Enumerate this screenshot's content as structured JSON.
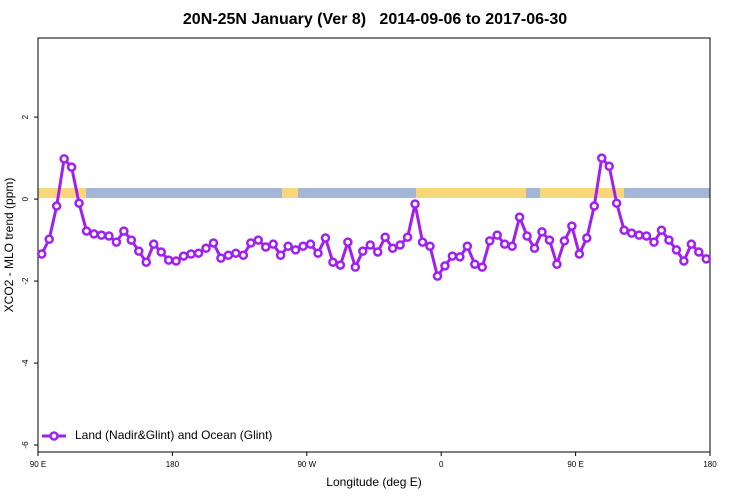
{
  "chart_data": {
    "type": "line",
    "title": "20N-25N January (Ver 8)   2014-09-06 to 2017-06-30",
    "x_label": "Longitude (deg E)",
    "y_label": "XCO2 - MLO trend (ppm)",
    "xlim": [
      90,
      540
    ],
    "ylim": [
      -6.17,
      3.93
    ],
    "xticks": [
      {
        "value": 90,
        "label": "90 E"
      },
      180,
      {
        "value": 270,
        "label": "90 W"
      },
      {
        "value": 360,
        "label": "0"
      },
      {
        "value": 450,
        "label": "90 E"
      },
      {
        "value": 540,
        "label": "180"
      }
    ],
    "yticks": [
      2,
      0,
      -2,
      -4,
      -6
    ],
    "legend": "bottom-left",
    "x": [
      92.5,
      97.5,
      102.5,
      107.5,
      112.5,
      117.5,
      122.5,
      127.5,
      132.5,
      137.5,
      142.5,
      147.5,
      152.5,
      157.5,
      162.5,
      167.5,
      172.5,
      177.5,
      182.5,
      187.5,
      192.5,
      197.5,
      202.5,
      207.5,
      212.5,
      217.5,
      222.5,
      227.5,
      232.5,
      237.5,
      242.5,
      247.5,
      252.5,
      257.5,
      262.5,
      267.5,
      272.5,
      277.5,
      282.5,
      287.5,
      292.5,
      297.5,
      302.5,
      307.5,
      312.5,
      317.5,
      322.5,
      327.5,
      332.5,
      337.5,
      342.5,
      347.5,
      352.5,
      357.5,
      362.5,
      367.5,
      372.5,
      377.5,
      382.5,
      387.5,
      392.5,
      397.5,
      402.5,
      407.5,
      412.5,
      417.5,
      422.5,
      427.5,
      432.5,
      437.5,
      442.5,
      447.5,
      452.5,
      457.5,
      462.5,
      467.5,
      472.5,
      477.5,
      482.5,
      487.5,
      492.5,
      497.5,
      502.5,
      507.5,
      512.5,
      517.5,
      522.5,
      527.5,
      532.5,
      537.5
    ],
    "series": [
      {
        "name": "Land (Nadir&Glint) and Ocean (Glint)",
        "color": "#a020f0",
        "values": [
          -1.34,
          -0.98,
          -0.17,
          0.98,
          0.78,
          -0.1,
          -0.78,
          -0.85,
          -0.88,
          -0.9,
          -1.05,
          -0.78,
          -1.0,
          -1.27,
          -1.54,
          -1.1,
          -1.29,
          -1.49,
          -1.51,
          -1.39,
          -1.34,
          -1.32,
          -1.2,
          -1.07,
          -1.44,
          -1.37,
          -1.32,
          -1.37,
          -1.07,
          -1.0,
          -1.17,
          -1.1,
          -1.37,
          -1.15,
          -1.24,
          -1.15,
          -1.1,
          -1.32,
          -0.95,
          -1.54,
          -1.61,
          -1.05,
          -1.66,
          -1.27,
          -1.12,
          -1.29,
          -0.93,
          -1.2,
          -1.12,
          -0.93,
          -0.12,
          -1.05,
          -1.15,
          -1.88,
          -1.63,
          -1.39,
          -1.41,
          -1.15,
          -1.59,
          -1.66,
          -1.02,
          -0.88,
          -1.1,
          -1.15,
          -0.44,
          -0.9,
          -1.2,
          -0.8,
          -1.0,
          -1.59,
          -1.02,
          -0.66,
          -1.34,
          -0.95,
          -0.17,
          1.0,
          0.8,
          -0.1,
          -0.76,
          -0.83,
          -0.88,
          -0.9,
          -1.05,
          -0.76,
          -1.0,
          -1.24,
          -1.51,
          -1.1,
          -1.29,
          -1.46
        ]
      }
    ]
  }
}
